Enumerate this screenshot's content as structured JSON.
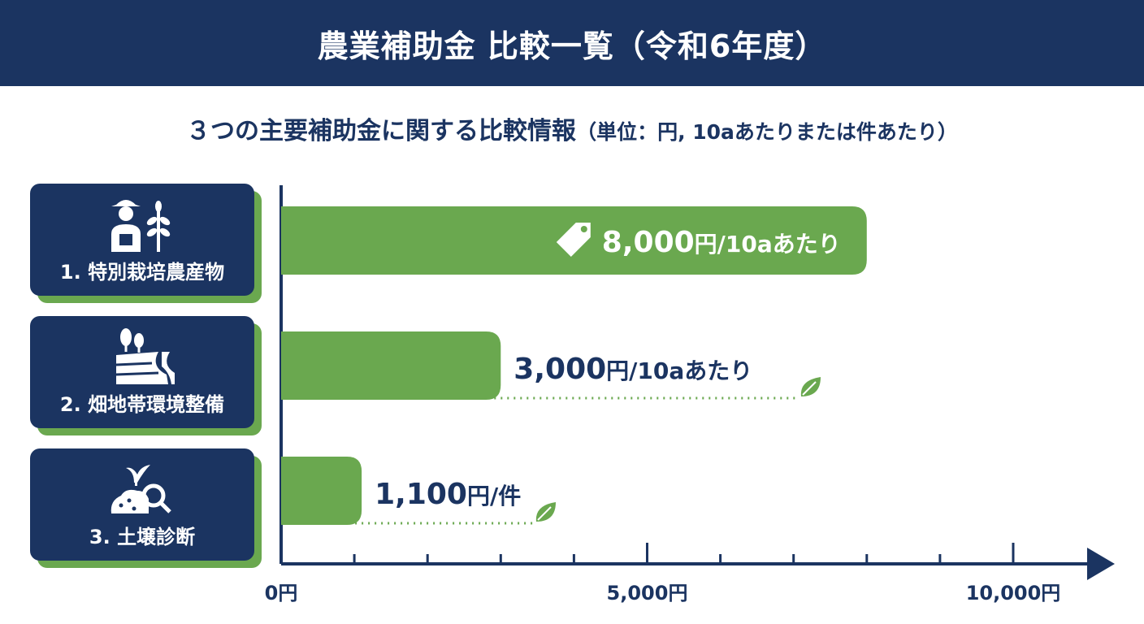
{
  "header": {
    "title": "農業補助金 比較一覧（令和6年度）"
  },
  "subtitle": {
    "main": "３つの主要補助金に関する比較情報",
    "unit": "（単位：円, 10aあたりまたは件あたり）"
  },
  "categories": [
    {
      "label": "1. 特別栽培農産物",
      "icon": "farmer-with-plant-icon"
    },
    {
      "label": "2. 畑地帯環境整備",
      "icon": "field-landscape-icon"
    },
    {
      "label": "3. 土壌診断",
      "icon": "soil-magnifier-icon"
    }
  ],
  "chart_data": {
    "type": "bar",
    "orientation": "horizontal",
    "categories": [
      "1. 特別栽培農産物",
      "2. 畑地帯環境整備",
      "3. 土壌診断"
    ],
    "values": [
      8000,
      3000,
      1100
    ],
    "value_labels": [
      {
        "amount": "8,000",
        "unit": "円/10aあたり"
      },
      {
        "amount": "3,000",
        "unit": "円/10aあたり"
      },
      {
        "amount": "1,100",
        "unit": "円/件"
      }
    ],
    "xlim": [
      0,
      10500
    ],
    "xticks": [
      0,
      5000,
      10000
    ],
    "xtick_labels": [
      "0円",
      "5,000円",
      "10,000円"
    ],
    "minor_tick_step": 1000,
    "grid": false,
    "colors": {
      "bar": "#6aa84f",
      "axis": "#1b3461",
      "label": "#1b3461",
      "highlight_label": "#ffffff"
    }
  }
}
